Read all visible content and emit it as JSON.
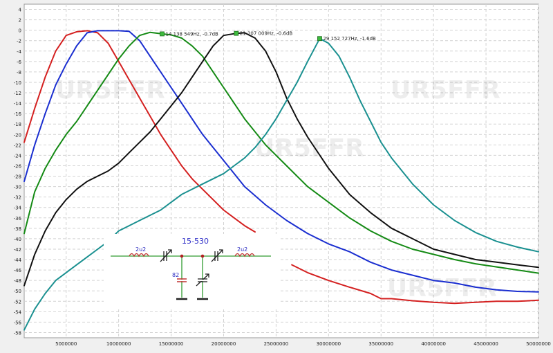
{
  "chart_data": {
    "type": "line",
    "title": "",
    "xlabel": "",
    "ylabel": "",
    "xlim": [
      1000000,
      50000000
    ],
    "ylim": [
      -59,
      5
    ],
    "x_ticks": [
      5000000,
      10000000,
      15000000,
      20000000,
      25000000,
      30000000,
      35000000,
      40000000,
      45000000,
      50000000
    ],
    "y_ticks": [
      4,
      2,
      0,
      -2,
      -4,
      -6,
      -8,
      -10,
      -12,
      -14,
      -16,
      -18,
      -20,
      -22,
      -24,
      -26,
      -28,
      -30,
      -32,
      -34,
      -36,
      -38,
      -40,
      -42,
      -44,
      -46,
      -48,
      -50,
      -52,
      -54,
      -56,
      -58
    ],
    "grid": true,
    "watermarks": [
      "UR5FFR",
      "UR5FFR",
      "UR5FFR",
      "UR5FFR"
    ],
    "series": [
      {
        "color": "#d42020",
        "x": [
          1000000,
          2000000,
          3000000,
          4000000,
          5000000,
          6000000,
          7000000,
          8000000,
          9000000,
          10000000,
          11000000,
          12000000,
          13000000,
          14000000,
          15000000,
          16000000,
          17000000,
          18000000,
          19000000,
          20000000,
          21000000,
          22000000,
          23000000
        ],
        "y": [
          -21.5,
          -15,
          -9,
          -4,
          -1,
          -0.3,
          -0.1,
          -0.5,
          -2.5,
          -6,
          -9.5,
          -13,
          -16.5,
          -20,
          -23,
          -26,
          -28.5,
          -30.5,
          -32.5,
          -34.5,
          -36,
          -37.5,
          -38.7
        ]
      },
      {
        "color": "#d42020",
        "x": [
          26500000,
          28000000,
          30000000,
          32000000,
          34000000,
          35000000,
          36000000,
          38000000,
          40000000,
          42000000,
          44000000,
          46000000,
          48000000,
          50000000
        ],
        "y": [
          -45,
          -46.5,
          -48,
          -49.3,
          -50.5,
          -51.5,
          -51.5,
          -51.9,
          -52.2,
          -52.4,
          -52.2,
          -52,
          -52,
          -51.8
        ]
      },
      {
        "color": "#1a2ed0",
        "x": [
          1000000,
          2000000,
          3000000,
          4000000,
          5000000,
          6000000,
          7000000,
          8000000,
          9000000,
          10000000,
          11000000,
          12000000,
          13000000,
          14000000,
          15000000,
          16000000,
          17000000,
          18000000,
          19000000,
          20000000,
          21000000,
          22000000,
          24000000,
          26000000,
          28000000,
          30000000,
          32000000,
          34000000,
          36000000,
          38000000,
          40000000,
          42000000,
          44000000,
          46000000,
          48000000,
          50000000
        ],
        "y": [
          -29,
          -22,
          -16,
          -10.5,
          -6.5,
          -3,
          -0.5,
          -0.1,
          -0.1,
          -0.1,
          -0.2,
          -2,
          -5,
          -8,
          -11,
          -14,
          -17,
          -20,
          -22.5,
          -25,
          -27.5,
          -30,
          -33.5,
          -36.5,
          -39,
          -41,
          -42.5,
          -44.5,
          -46,
          -47,
          -48,
          -48.5,
          -49.3,
          -49.8,
          -50.1,
          -50.2
        ]
      },
      {
        "color": "#148a14",
        "x": [
          1000000,
          2000000,
          3000000,
          4000000,
          5000000,
          6000000,
          7000000,
          8000000,
          9000000,
          10000000,
          11000000,
          12000000,
          13000000,
          14138549,
          15000000,
          16000000,
          17000000,
          18000000,
          19000000,
          20000000,
          21000000,
          22000000,
          24000000,
          26000000,
          28000000,
          30000000,
          32000000,
          34000000,
          36000000,
          38000000,
          40000000,
          42000000,
          44000000,
          46000000,
          48000000,
          50000000
        ],
        "y": [
          -39,
          -31,
          -26.5,
          -23,
          -20,
          -17.5,
          -14.5,
          -11.5,
          -8.5,
          -5.5,
          -3,
          -1,
          -0.4,
          -0.7,
          -0.9,
          -1.5,
          -3,
          -5,
          -8,
          -11,
          -14,
          -17,
          -22,
          -26,
          -30,
          -33,
          -36,
          -38.5,
          -40.5,
          -42,
          -43,
          -44,
          -44.8,
          -45.4,
          -46,
          -46.6
        ]
      },
      {
        "color": "#101010",
        "x": [
          1000000,
          2000000,
          3000000,
          4000000,
          5000000,
          6000000,
          7000000,
          8000000,
          9000000,
          10000000,
          11000000,
          12000000,
          13000000,
          14000000,
          15000000,
          16000000,
          17000000,
          18000000,
          19000000,
          20000000,
          21207009,
          22000000,
          23000000,
          24000000,
          25000000,
          26000000,
          27000000,
          28000000,
          30000000,
          32000000,
          34000000,
          36000000,
          38000000,
          40000000,
          42000000,
          44000000,
          46000000,
          48000000,
          50000000
        ],
        "y": [
          -49,
          -43,
          -38.5,
          -35,
          -32.5,
          -30.5,
          -29,
          -28,
          -27,
          -25.5,
          -23.5,
          -21.5,
          -19.5,
          -17,
          -14.5,
          -12,
          -9,
          -6,
          -3,
          -1,
          -0.6,
          -0.5,
          -1.5,
          -4,
          -8,
          -13,
          -17,
          -20.5,
          -26.5,
          -31.5,
          -35,
          -38,
          -40,
          -42,
          -43,
          -44,
          -44.5,
          -45,
          -45.5
        ]
      },
      {
        "color": "#1a9090",
        "x": [
          1000000,
          2000000,
          3000000,
          4000000,
          5000000,
          6000000,
          7000000,
          8000000,
          9000000,
          10000000,
          11000000,
          12000000,
          13000000,
          14000000,
          15000000,
          16000000,
          17000000,
          18000000,
          19000000,
          20000000,
          21000000,
          22000000,
          23000000,
          24000000,
          25000000,
          26000000,
          27000000,
          28000000,
          29152727,
          30000000,
          31000000,
          32000000,
          33000000,
          34000000,
          35000000,
          36000000,
          38000000,
          40000000,
          42000000,
          44000000,
          46000000,
          48000000,
          50000000
        ],
        "y": [
          -57.5,
          -53.5,
          -50.5,
          -48,
          -46.5,
          -45,
          -43.5,
          -42,
          -40.5,
          -38.5,
          -37.5,
          -36.5,
          -35.5,
          -34.5,
          -33,
          -31.5,
          -30.5,
          -29.5,
          -28.5,
          -27.5,
          -26,
          -24.5,
          -22.5,
          -20,
          -17,
          -13.5,
          -10,
          -6,
          -1.6,
          -2.5,
          -5,
          -9,
          -13.5,
          -17.5,
          -21.5,
          -24.5,
          -29.5,
          -33.5,
          -36.5,
          -38.8,
          -40.5,
          -41.6,
          -42.5
        ]
      }
    ],
    "markers": [
      {
        "label": "14 138 549Hz, -0.7dB",
        "x": 14138549,
        "y": -0.7
      },
      {
        "label": "21 207 009Hz, -0.6dB",
        "x": 21207009,
        "y": -0.6
      },
      {
        "label": "29 152 727Hz, -1.6dB",
        "x": 29152727,
        "y": -1.6
      }
    ]
  },
  "schematic": {
    "title": "15-530",
    "inductor_left": "2u2",
    "inductor_right": "2u2",
    "capacitor": "82"
  }
}
